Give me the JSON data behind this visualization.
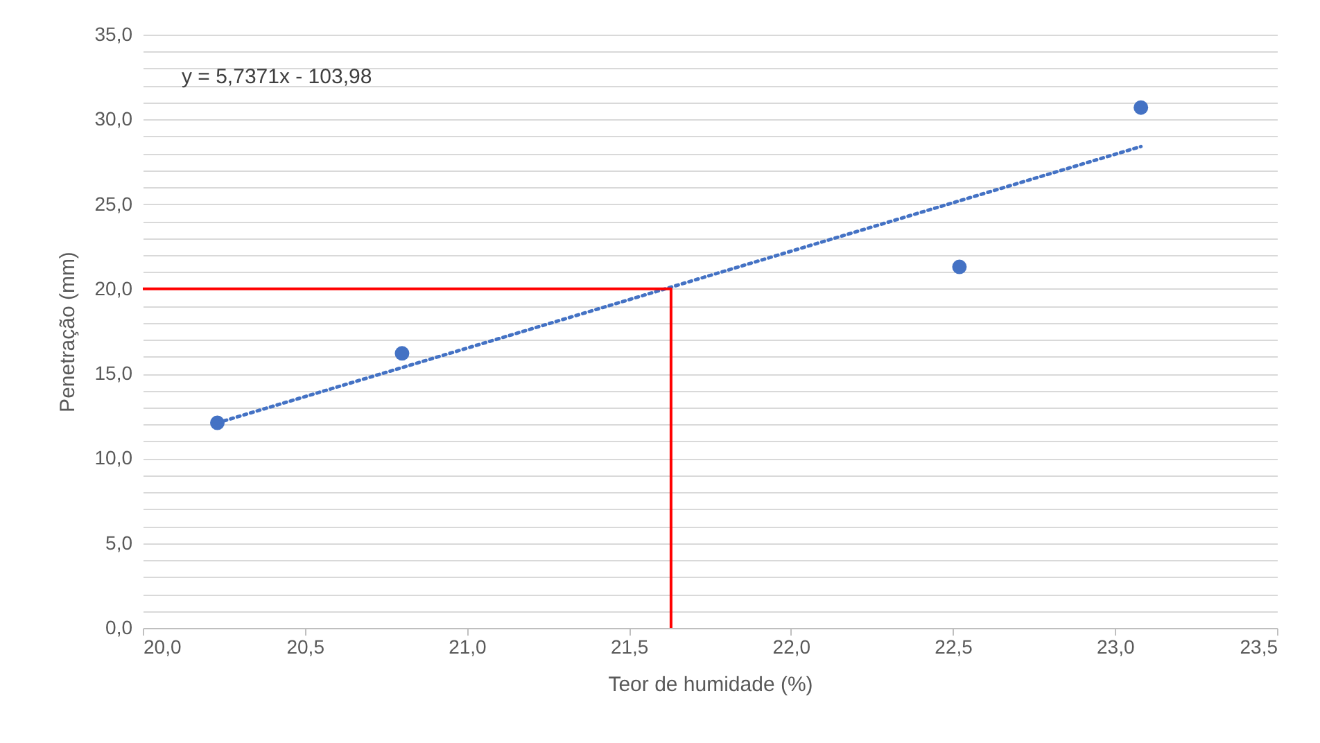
{
  "chart_data": {
    "type": "scatter",
    "xlabel": "Teor de humidade (%)",
    "ylabel": "Penetração (mm)",
    "annotations": [
      "y = 5,7371x - 103,98"
    ],
    "series": [
      {
        "type": "scatter",
        "color": "#4472c4",
        "x": [
          20.23,
          20.8,
          22.52,
          23.08
        ],
        "values": [
          12.1,
          16.2,
          21.3,
          30.7
        ],
        "marker": "circle"
      },
      {
        "type": "line",
        "color": "#4472c4",
        "x": [
          20.23,
          23.08
        ],
        "values": [
          12.1,
          28.4
        ],
        "line_style": "dotted",
        "marker": "none"
      },
      {
        "type": "line",
        "color": "#ff0000",
        "x": [
          20.0,
          21.63,
          21.63
        ],
        "values": [
          20.0,
          20.0,
          0.0
        ],
        "line_style": "solid",
        "marker": "none"
      }
    ],
    "xlim": [
      20.0,
      23.5
    ],
    "xticks": [
      {
        "value": 20.0,
        "label": "20,0"
      },
      {
        "value": 20.5,
        "label": "20,5"
      },
      {
        "value": 21.0,
        "label": "21,0"
      },
      {
        "value": 21.5,
        "label": "21,5"
      },
      {
        "value": 22.0,
        "label": "22,0"
      },
      {
        "value": 22.5,
        "label": "22,5"
      },
      {
        "value": 23.0,
        "label": "23,0"
      },
      {
        "value": 23.5,
        "label": "23,5"
      }
    ],
    "ylim": [
      0.0,
      35.0
    ],
    "yticks": [
      {
        "value": 0,
        "label": "0,0"
      },
      {
        "value": 1,
        "label": null
      },
      {
        "value": 2,
        "label": null
      },
      {
        "value": 3,
        "label": null
      },
      {
        "value": 4,
        "label": null
      },
      {
        "value": 5,
        "label": "5,0"
      },
      {
        "value": 6,
        "label": null
      },
      {
        "value": 7,
        "label": null
      },
      {
        "value": 8,
        "label": null
      },
      {
        "value": 9,
        "label": null
      },
      {
        "value": 10,
        "label": "10,0"
      },
      {
        "value": 11,
        "label": null
      },
      {
        "value": 12,
        "label": null
      },
      {
        "value": 13,
        "label": null
      },
      {
        "value": 14,
        "label": null
      },
      {
        "value": 15,
        "label": "15,0"
      },
      {
        "value": 16,
        "label": null
      },
      {
        "value": 17,
        "label": null
      },
      {
        "value": 18,
        "label": null
      },
      {
        "value": 19,
        "label": null
      },
      {
        "value": 20,
        "label": "20,0"
      },
      {
        "value": 21,
        "label": null
      },
      {
        "value": 22,
        "label": null
      },
      {
        "value": 23,
        "label": null
      },
      {
        "value": 24,
        "label": null
      },
      {
        "value": 25,
        "label": "25,0"
      },
      {
        "value": 26,
        "label": null
      },
      {
        "value": 27,
        "label": null
      },
      {
        "value": 28,
        "label": null
      },
      {
        "value": 29,
        "label": null
      },
      {
        "value": 30,
        "label": "30,0"
      },
      {
        "value": 31,
        "label": null
      },
      {
        "value": 32,
        "label": null
      },
      {
        "value": 33,
        "label": null
      },
      {
        "value": 34,
        "label": null
      },
      {
        "value": 35,
        "label": "35,0"
      }
    ],
    "grid": "y"
  }
}
